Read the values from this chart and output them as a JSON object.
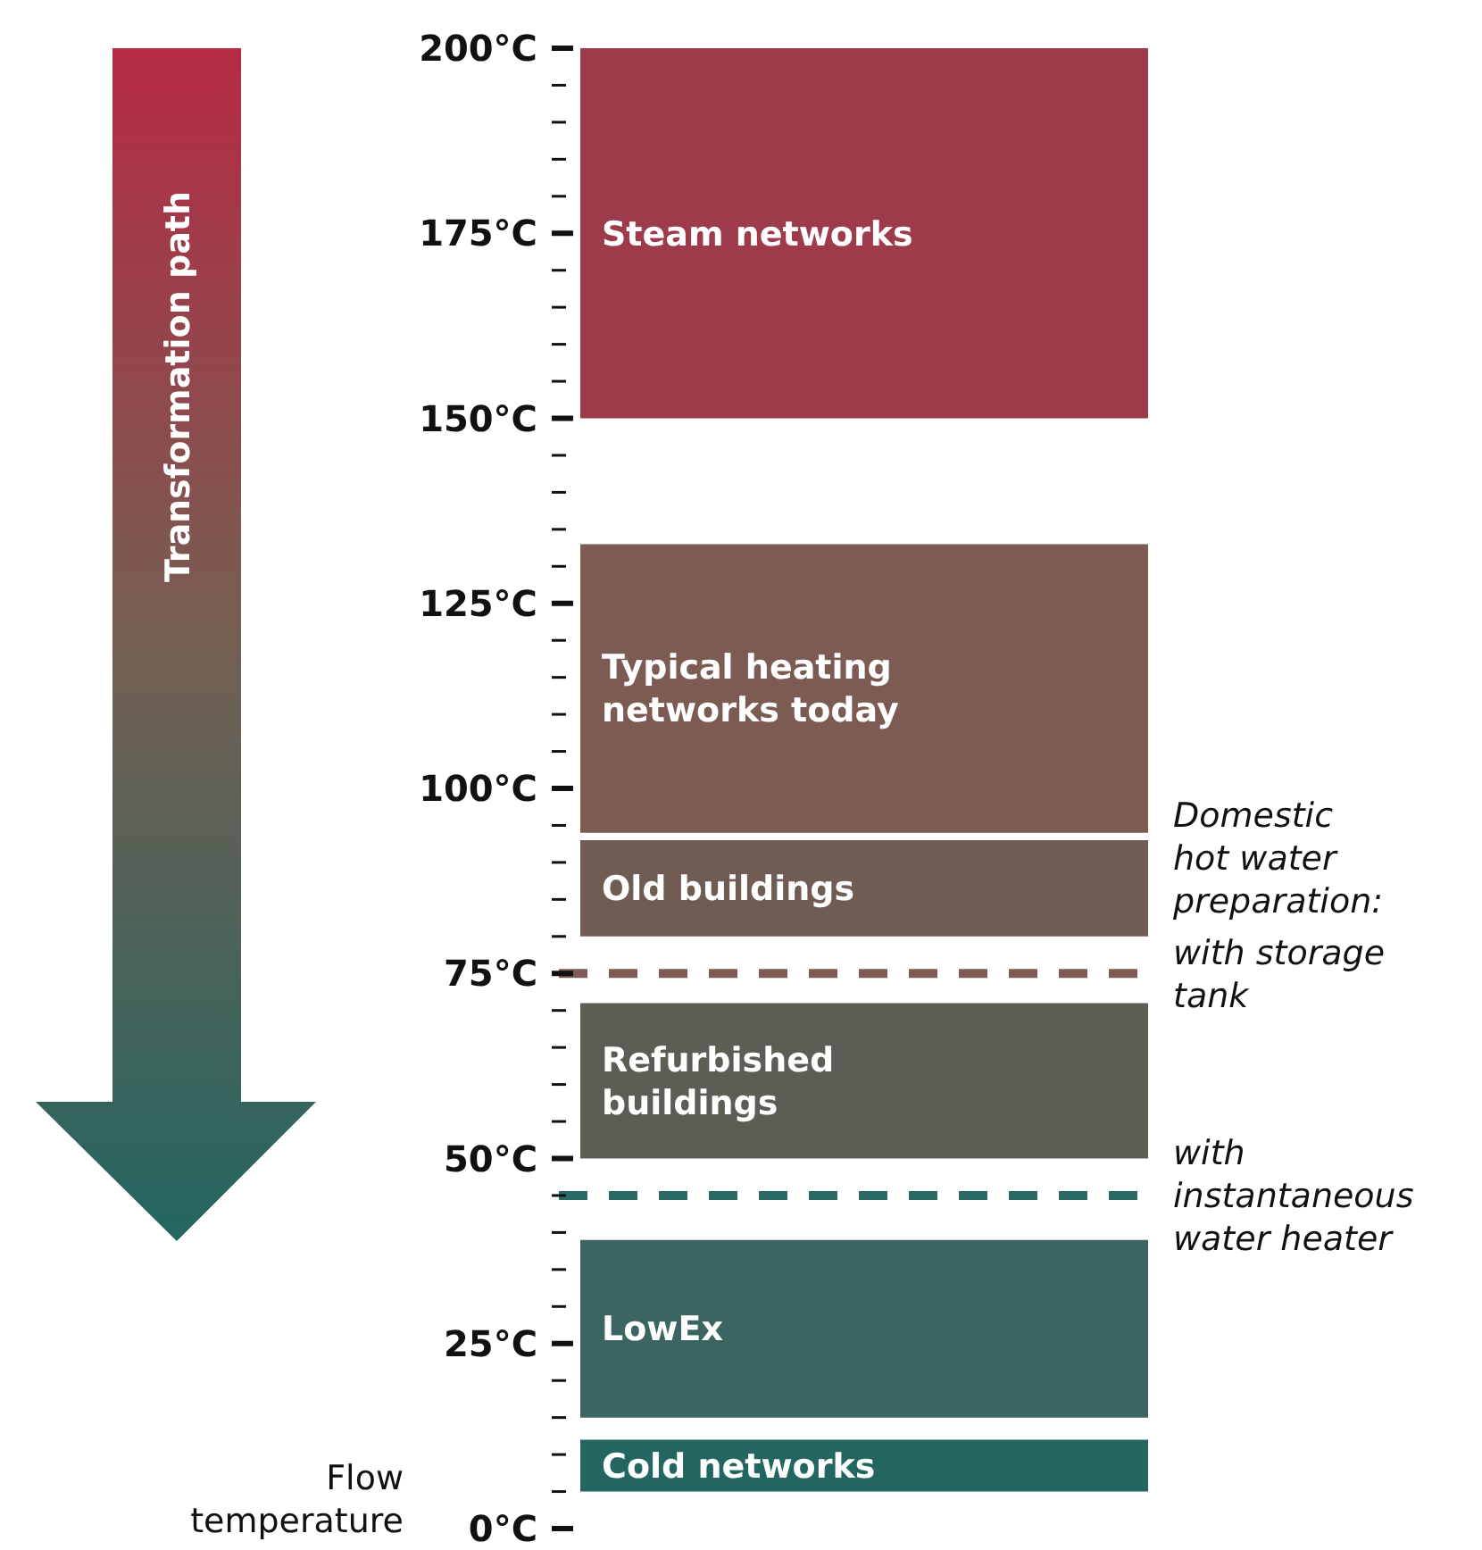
{
  "chart_data": {
    "type": "bar",
    "categories": [
      null
    ],
    "ylabel": "Flow temperature",
    "ylim": [
      0,
      200
    ],
    "yticks": [
      {
        "value": 0,
        "label": "0°C"
      },
      {
        "value": 5,
        "label": null
      },
      {
        "value": 10,
        "label": null
      },
      {
        "value": 15,
        "label": null
      },
      {
        "value": 20,
        "label": null
      },
      {
        "value": 25,
        "label": "25°C"
      },
      {
        "value": 30,
        "label": null
      },
      {
        "value": 35,
        "label": null
      },
      {
        "value": 40,
        "label": null
      },
      {
        "value": 45,
        "label": null
      },
      {
        "value": 50,
        "label": "50°C"
      },
      {
        "value": 55,
        "label": null
      },
      {
        "value": 60,
        "label": null
      },
      {
        "value": 65,
        "label": null
      },
      {
        "value": 70,
        "label": null
      },
      {
        "value": 75,
        "label": "75°C"
      },
      {
        "value": 80,
        "label": null
      },
      {
        "value": 85,
        "label": null
      },
      {
        "value": 90,
        "label": null
      },
      {
        "value": 95,
        "label": null
      },
      {
        "value": 100,
        "label": "100°C"
      },
      {
        "value": 105,
        "label": null
      },
      {
        "value": 110,
        "label": null
      },
      {
        "value": 115,
        "label": null
      },
      {
        "value": 120,
        "label": null
      },
      {
        "value": 125,
        "label": "125°C"
      },
      {
        "value": 130,
        "label": null
      },
      {
        "value": 135,
        "label": null
      },
      {
        "value": 140,
        "label": null
      },
      {
        "value": 145,
        "label": null
      },
      {
        "value": 150,
        "label": "150°C"
      },
      {
        "value": 155,
        "label": null
      },
      {
        "value": 160,
        "label": null
      },
      {
        "value": 165,
        "label": null
      },
      {
        "value": 170,
        "label": null
      },
      {
        "value": 175,
        "label": "175°C"
      },
      {
        "value": 180,
        "label": null
      },
      {
        "value": 185,
        "label": null
      },
      {
        "value": 190,
        "label": null
      },
      {
        "value": 195,
        "label": null
      },
      {
        "value": 200,
        "label": "200°C"
      }
    ],
    "series": [
      {
        "name": "Steam networks",
        "color": "#9e3b4b",
        "base": [
          150
        ],
        "values": [
          50
        ]
      },
      {
        "name": "Typical heating networks today",
        "color": "#7b5b52",
        "base": [
          94
        ],
        "values": [
          39
        ]
      },
      {
        "name": "Old buildings",
        "color": "#705c52",
        "base": [
          80
        ],
        "values": [
          13
        ]
      },
      {
        "name": "Refurbished buildings",
        "color": "#5b5e55",
        "base": [
          50
        ],
        "values": [
          21
        ]
      },
      {
        "name": "LowEx",
        "color": "#3a6560",
        "base": [
          15
        ],
        "values": [
          24
        ]
      },
      {
        "name": "Cold networks",
        "color": "#236660",
        "base": [
          5
        ],
        "values": [
          7
        ]
      }
    ],
    "ref_lines": [
      {
        "axis": "y",
        "value": 75,
        "label": "with storage tank",
        "color": "#7e5c53",
        "line_style": "dashed"
      },
      {
        "axis": "y",
        "value": 45,
        "label": "with instantaneous water heater",
        "color": "#2a6a64",
        "line_style": "dashed"
      }
    ],
    "annotations": [
      "Transformation path",
      "Domestic hot water preparation:"
    ]
  }
}
